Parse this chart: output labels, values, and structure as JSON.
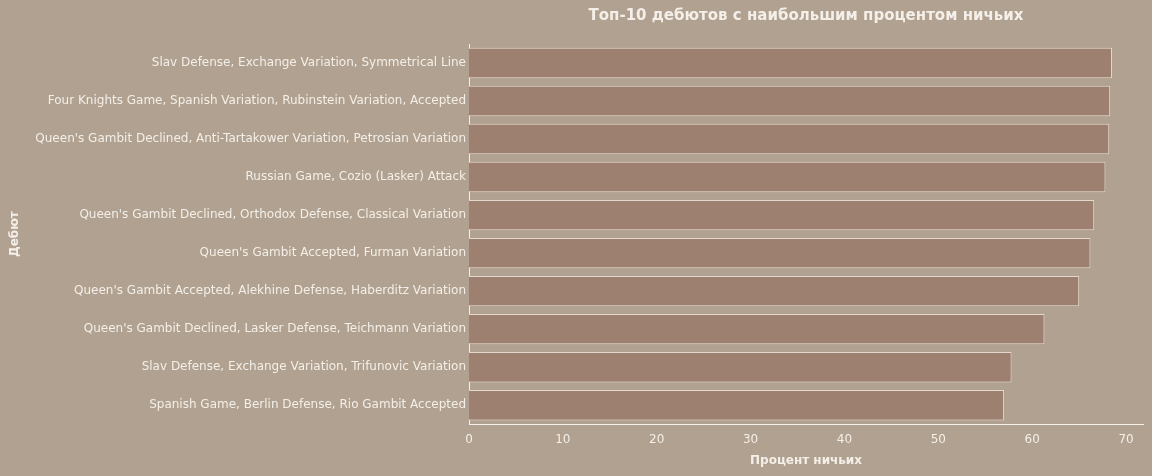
{
  "chart_data": {
    "type": "bar",
    "orientation": "horizontal",
    "title": "Топ-10 дебютов с наибольшим процентом ничьих",
    "xlabel": "Процент ничьих",
    "ylabel": "Дебют",
    "categories": [
      "Slav Defense, Exchange Variation, Symmetrical Line",
      "Four Knights Game, Spanish Variation, Rubinstein Variation, Accepted",
      "Queen's Gambit Declined, Anti-Tartakower Variation, Petrosian Variation",
      "Russian Game, Cozio (Lasker) Attack",
      "Queen's Gambit Declined, Orthodox Defense, Classical Variation",
      "Queen's Gambit Accepted, Furman Variation",
      "Queen's Gambit Accepted, Alekhine Defense, Haberditz Variation",
      "Queen's Gambit Declined, Lasker Defense, Teichmann Variation",
      "Slav Defense, Exchange Variation, Trifunovic Variation",
      "Spanish Game, Berlin Defense, Rio Gambit Accepted"
    ],
    "values": [
      68.5,
      68.3,
      68.2,
      67.8,
      66.6,
      66.2,
      65.0,
      61.3,
      57.8,
      57.0
    ],
    "color": "#9e8070",
    "xlim": [
      0,
      71.8
    ],
    "xticks": [
      0,
      10,
      20,
      30,
      40,
      50,
      60,
      70
    ],
    "grid": false,
    "legend": false
  }
}
